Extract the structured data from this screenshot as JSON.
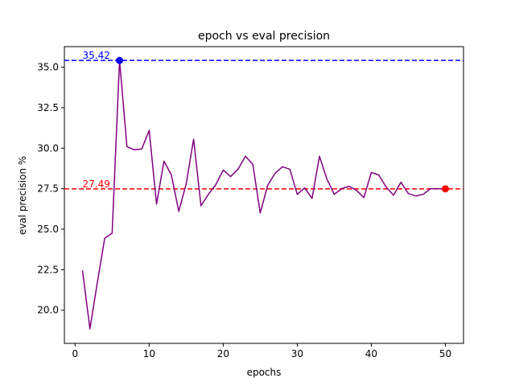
{
  "chart_data": {
    "type": "line",
    "title": "epoch vs eval precision",
    "xlabel": "epochs",
    "ylabel": "eval precision %",
    "xlim": [
      -1.45,
      52.45
    ],
    "ylim": [
      17.95,
      36.27
    ],
    "xticks": [
      0,
      10,
      20,
      30,
      40,
      50
    ],
    "yticks": [
      20.0,
      22.5,
      25.0,
      27.5,
      30.0,
      32.5,
      35.0
    ],
    "grid": false,
    "legend": "none",
    "series": [
      {
        "color": "#800080",
        "x": [
          1,
          2,
          3,
          4,
          5,
          6,
          7,
          8,
          9,
          10,
          11,
          12,
          13,
          14,
          15,
          16,
          17,
          18,
          19,
          20,
          21,
          22,
          23,
          24,
          25,
          26,
          27,
          28,
          29,
          30,
          31,
          32,
          33,
          34,
          35,
          36,
          37,
          38,
          39,
          40,
          41,
          42,
          43,
          44,
          45,
          46,
          47,
          48,
          49,
          50
        ],
        "y": [
          22.45,
          18.85,
          21.7,
          24.45,
          24.75,
          35.42,
          30.1,
          29.9,
          29.95,
          31.1,
          26.55,
          29.2,
          28.35,
          26.1,
          27.8,
          30.55,
          26.45,
          27.15,
          27.75,
          28.65,
          28.25,
          28.7,
          29.5,
          29.0,
          26.0,
          27.7,
          28.45,
          28.85,
          28.7,
          27.15,
          27.55,
          26.9,
          29.5,
          28.1,
          27.15,
          27.5,
          27.65,
          27.4,
          26.95,
          28.5,
          28.35,
          27.6,
          27.1,
          27.9,
          27.2,
          27.05,
          27.15,
          27.5,
          27.5,
          27.49
        ]
      }
    ],
    "reference_lines": [
      {
        "value": 35.42,
        "label": "35.42",
        "color": "#0000ff"
      },
      {
        "value": 27.49,
        "label": "27.49",
        "color": "#ff0000"
      }
    ],
    "highlight_points": [
      {
        "x": 6,
        "y": 35.42,
        "color": "#0000ff"
      },
      {
        "x": 50,
        "y": 27.49,
        "color": "#ff0000"
      }
    ]
  }
}
